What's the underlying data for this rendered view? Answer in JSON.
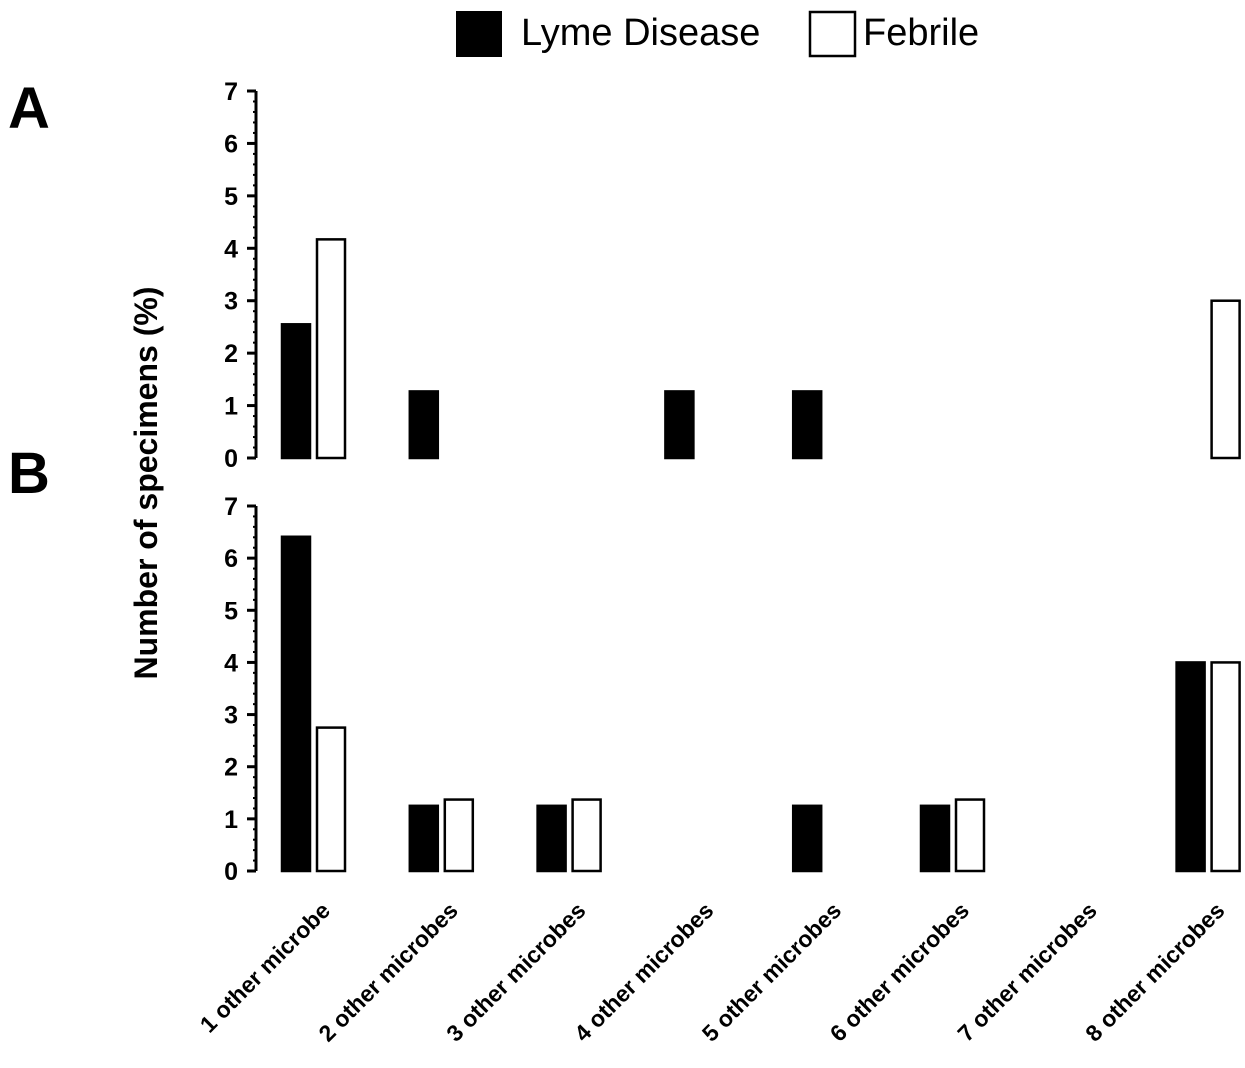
{
  "legend": {
    "items": [
      {
        "label": "Lyme Disease",
        "fill": "#000000"
      },
      {
        "label": "Febrile",
        "fill": "#ffffff"
      }
    ]
  },
  "chart_data": {
    "type": "bar",
    "ylabel": "Number of specimens (%)",
    "ylim": [
      0,
      7
    ],
    "yticks": [
      "0",
      "1",
      "2",
      "3",
      "4",
      "5",
      "6",
      "7"
    ],
    "categories": [
      "1 other microbe",
      "2 other microbes",
      "3 other microbes",
      "4 other microbes",
      "5 other microbes",
      "6 other microbes",
      "7 other microbes",
      "8 other microbes"
    ],
    "panels": [
      {
        "label": "A",
        "series": [
          {
            "name": "Lyme Disease",
            "values": [
              2.55,
              1.27,
              0,
              1.27,
              1.27,
              0,
              0,
              0
            ]
          },
          {
            "name": "Febrile",
            "values": [
              4.17,
              0,
              0,
              0,
              0,
              0,
              0,
              3.0
            ]
          }
        ]
      },
      {
        "label": "B",
        "series": [
          {
            "name": "Lyme Disease",
            "values": [
              6.41,
              1.25,
              1.25,
              0,
              1.25,
              1.25,
              0,
              4.0
            ]
          },
          {
            "name": "Febrile",
            "values": [
              2.75,
              1.37,
              1.37,
              0,
              0,
              1.37,
              0,
              4.0
            ]
          }
        ]
      }
    ]
  }
}
